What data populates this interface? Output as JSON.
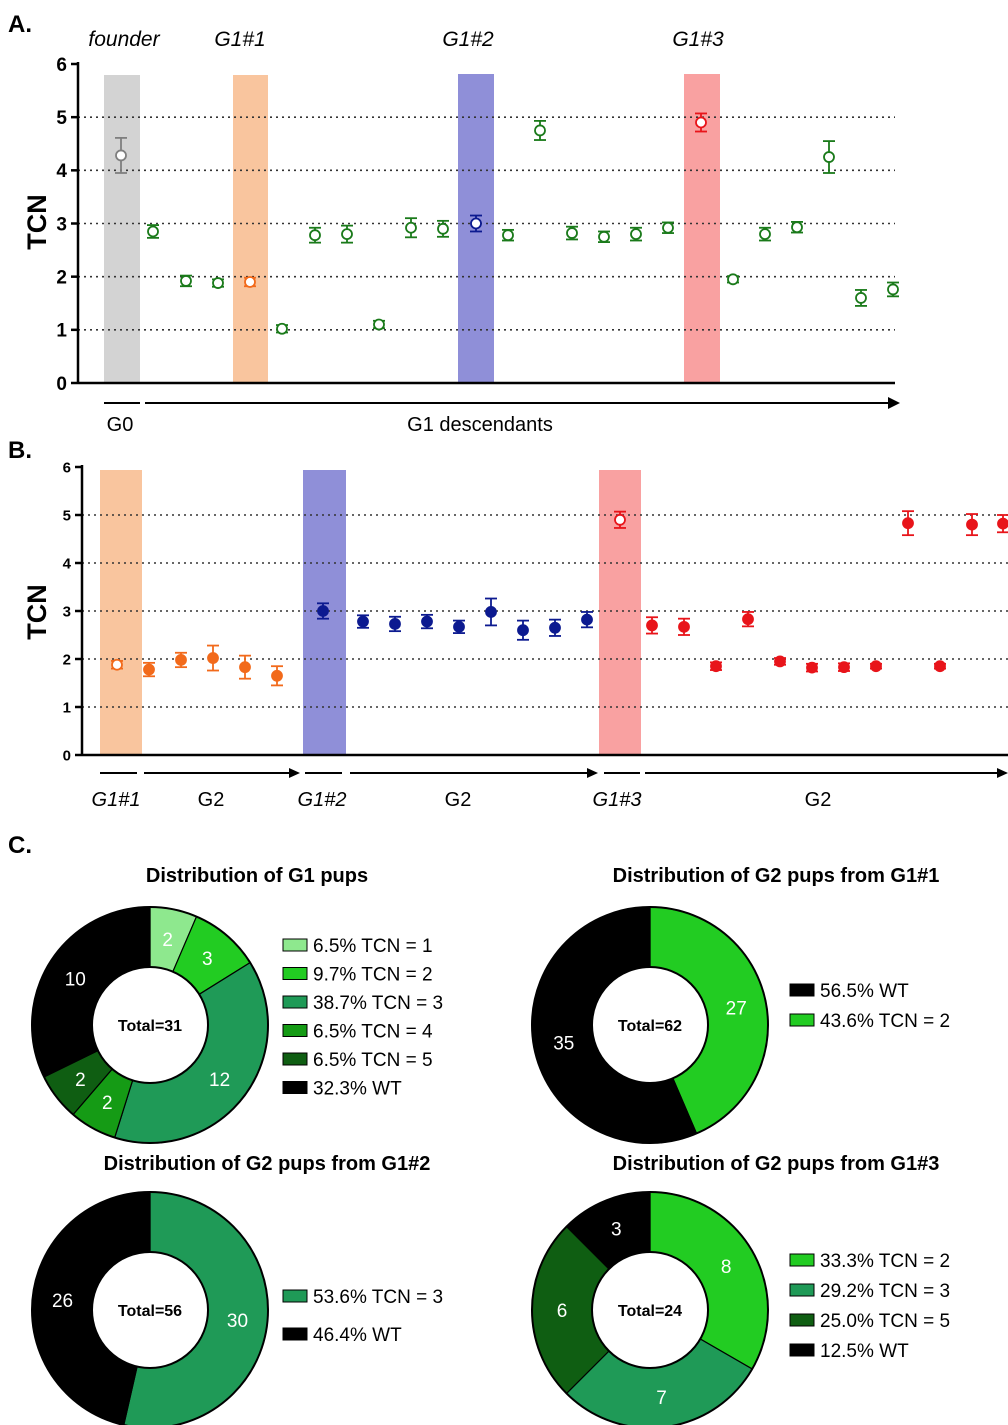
{
  "panels": {
    "a": "A.",
    "b": "B.",
    "c": "C."
  },
  "colors": {
    "founder": "#7f7f7f",
    "green_marker": "#1a7a1a",
    "orange": "#f26a1b",
    "navy": "#0c1a90",
    "red": "#e8141a",
    "band_grey": "#d3d3d3",
    "band_orange": "#f9c59e",
    "band_blue": "#8f8fd8",
    "band_pink": "#f9a1a1",
    "tcn1": "#8ee88e",
    "tcn2": "#22cc22",
    "tcn3": "#1f9a57",
    "tcn4": "#159b15",
    "tcn5": "#0f5e12",
    "wt": "#000000"
  },
  "chart_data": [
    {
      "type": "scatter",
      "title": "",
      "ylabel": "TCN",
      "ylim": [
        0,
        6
      ],
      "yticks": [
        "0",
        "1",
        "2",
        "3",
        "4",
        "5",
        "6"
      ],
      "grid": "horizontal dotted",
      "column_labels": [
        "founder",
        "G1#1",
        "G1#2",
        "G1#3"
      ],
      "axis_labels": [
        "G0",
        "G1 descendants"
      ],
      "points": [
        {
          "y": 4.28,
          "err": 0.33,
          "group": "founder"
        },
        {
          "y": 2.85,
          "err": 0.12,
          "group": "G1"
        },
        {
          "y": 1.92,
          "err": 0.1,
          "group": "G1"
        },
        {
          "y": 1.88,
          "err": 0.07,
          "group": "G1"
        },
        {
          "y": 1.9,
          "err": 0.08,
          "group": "G1#1"
        },
        {
          "y": 1.02,
          "err": 0.07,
          "group": "G1"
        },
        {
          "y": 2.78,
          "err": 0.14,
          "group": "G1"
        },
        {
          "y": 2.8,
          "err": 0.16,
          "group": "G1"
        },
        {
          "y": 1.1,
          "err": 0.07,
          "group": "G1"
        },
        {
          "y": 2.92,
          "err": 0.18,
          "group": "G1"
        },
        {
          "y": 2.9,
          "err": 0.15,
          "group": "G1"
        },
        {
          "y": 3.0,
          "err": 0.15,
          "group": "G1#2"
        },
        {
          "y": 2.78,
          "err": 0.1,
          "group": "G1"
        },
        {
          "y": 4.75,
          "err": 0.18,
          "group": "G1"
        },
        {
          "y": 2.82,
          "err": 0.12,
          "group": "G1"
        },
        {
          "y": 2.75,
          "err": 0.1,
          "group": "G1"
        },
        {
          "y": 2.8,
          "err": 0.12,
          "group": "G1"
        },
        {
          "y": 2.92,
          "err": 0.1,
          "group": "G1"
        },
        {
          "y": 4.9,
          "err": 0.17,
          "group": "G1#3"
        },
        {
          "y": 1.95,
          "err": 0.06,
          "group": "G1"
        },
        {
          "y": 2.8,
          "err": 0.12,
          "group": "G1"
        },
        {
          "y": 2.93,
          "err": 0.1,
          "group": "G1"
        },
        {
          "y": 4.25,
          "err": 0.3,
          "group": "G1"
        },
        {
          "y": 1.6,
          "err": 0.15,
          "group": "G1"
        },
        {
          "y": 1.76,
          "err": 0.13,
          "group": "G1"
        }
      ]
    },
    {
      "type": "scatter",
      "title": "",
      "ylabel": "TCN",
      "ylim": [
        0,
        6
      ],
      "yticks": [
        "0",
        "1",
        "2",
        "3",
        "4",
        "5",
        "6"
      ],
      "grid": "horizontal dotted",
      "axis_labels": [
        "G1#1",
        "G2",
        "G1#2",
        "G2",
        "G1#3",
        "G2"
      ],
      "points": [
        {
          "y": 1.88,
          "err": 0.08,
          "group": "G1#1",
          "open": true
        },
        {
          "y": 1.78,
          "err": 0.14,
          "group": "G2 from G1#1"
        },
        {
          "y": 1.98,
          "err": 0.15,
          "group": "G2 from G1#1"
        },
        {
          "y": 2.02,
          "err": 0.26,
          "group": "G2 from G1#1"
        },
        {
          "y": 1.83,
          "err": 0.24,
          "group": "G2 from G1#1"
        },
        {
          "y": 1.65,
          "err": 0.2,
          "group": "G2 from G1#1"
        },
        {
          "y": 3.0,
          "err": 0.16,
          "group": "G1#2"
        },
        {
          "y": 2.78,
          "err": 0.13,
          "group": "G2 from G1#2"
        },
        {
          "y": 2.73,
          "err": 0.15,
          "group": "G2 from G1#2"
        },
        {
          "y": 2.78,
          "err": 0.14,
          "group": "G2 from G1#2"
        },
        {
          "y": 2.67,
          "err": 0.13,
          "group": "G2 from G1#2"
        },
        {
          "y": 2.98,
          "err": 0.28,
          "group": "G2 from G1#2"
        },
        {
          "y": 2.6,
          "err": 0.2,
          "group": "G2 from G1#2"
        },
        {
          "y": 2.65,
          "err": 0.17,
          "group": "G2 from G1#2"
        },
        {
          "y": 2.82,
          "err": 0.16,
          "group": "G2 from G1#2"
        },
        {
          "y": 4.9,
          "err": 0.17,
          "group": "G1#3",
          "open": true
        },
        {
          "y": 2.7,
          "err": 0.17,
          "group": "G2 from G1#3"
        },
        {
          "y": 2.67,
          "err": 0.17,
          "group": "G2 from G1#3"
        },
        {
          "y": 1.85,
          "err": 0.08,
          "group": "G2 from G1#3"
        },
        {
          "y": 2.83,
          "err": 0.15,
          "group": "G2 from G1#3"
        },
        {
          "y": 1.95,
          "err": 0.07,
          "group": "G2 from G1#3"
        },
        {
          "y": 1.82,
          "err": 0.08,
          "group": "G2 from G1#3"
        },
        {
          "y": 1.83,
          "err": 0.08,
          "group": "G2 from G1#3"
        },
        {
          "y": 1.85,
          "err": 0.05,
          "group": "G2 from G1#3"
        },
        {
          "y": 4.83,
          "err": 0.25,
          "group": "G2 from G1#3"
        },
        {
          "y": 1.85,
          "err": 0.05,
          "group": "G2 from G1#3"
        },
        {
          "y": 4.8,
          "err": 0.22,
          "group": "G2 from G1#3"
        },
        {
          "y": 4.82,
          "err": 0.18,
          "group": "G2 from G1#3"
        }
      ]
    },
    {
      "type": "pie",
      "title": "Distribution of G1 pups",
      "center_label": "Total=31",
      "slices": [
        {
          "label": "6.5% TCN = 1",
          "value": 2,
          "color": "tcn1"
        },
        {
          "label": "9.7% TCN = 2",
          "value": 3,
          "color": "tcn2"
        },
        {
          "label": "38.7% TCN = 3",
          "value": 12,
          "color": "tcn3"
        },
        {
          "label": "6.5% TCN = 4",
          "value": 2,
          "color": "tcn4"
        },
        {
          "label": "6.5% TCN = 5",
          "value": 2,
          "color": "tcn5"
        },
        {
          "label": "32.3% WT",
          "value": 10,
          "color": "wt"
        }
      ]
    },
    {
      "type": "pie",
      "title": "Distribution of G2 pups from G1#1",
      "center_label": "Total=62",
      "slices": [
        {
          "label": "43.6% TCN = 2",
          "value": 27,
          "color": "tcn2"
        },
        {
          "label": "56.5% WT",
          "value": 35,
          "color": "wt"
        }
      ],
      "legend_order": [
        1,
        0
      ]
    },
    {
      "type": "pie",
      "title": "Distribution of G2 pups from G1#2",
      "center_label": "Total=56",
      "slices": [
        {
          "label": "53.6% TCN = 3",
          "value": 30,
          "color": "tcn3"
        },
        {
          "label": "46.4% WT",
          "value": 26,
          "color": "wt"
        }
      ]
    },
    {
      "type": "pie",
      "title": "Distribution of G2 pups from G1#3",
      "center_label": "Total=24",
      "slices": [
        {
          "label": "33.3% TCN = 2",
          "value": 8,
          "color": "tcn2"
        },
        {
          "label": "29.2% TCN = 3",
          "value": 7,
          "color": "tcn3"
        },
        {
          "label": "25.0% TCN = 5",
          "value": 6,
          "color": "tcn5"
        },
        {
          "label": "12.5% WT",
          "value": 3,
          "color": "wt"
        }
      ]
    }
  ]
}
